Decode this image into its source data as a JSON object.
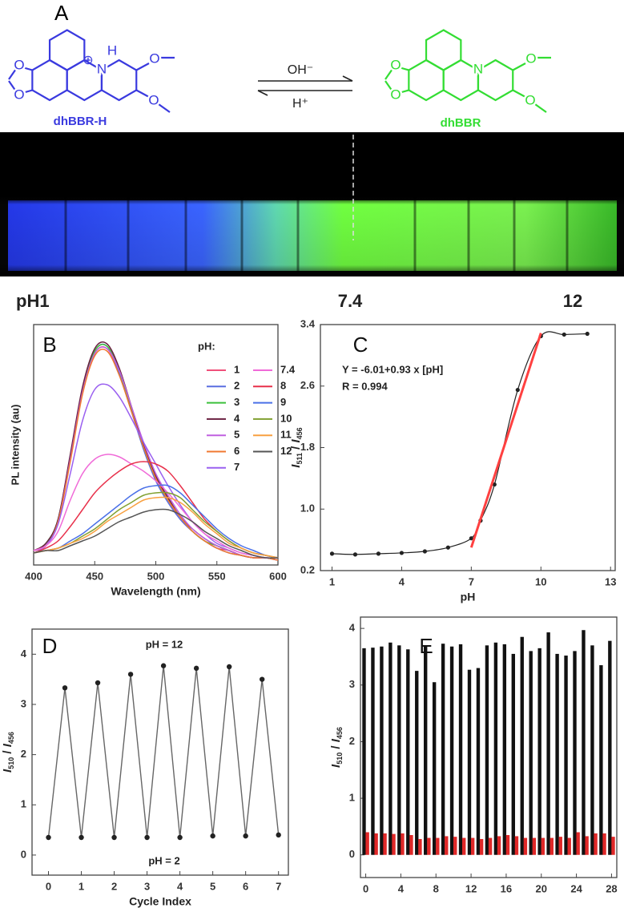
{
  "panel_a": {
    "label": "A",
    "left_name": "dhBBR-H",
    "right_name": "dhBBR",
    "forward": "OH⁻",
    "backward": "H⁺",
    "charge": "⊕",
    "left_atoms": [
      "O",
      "O",
      "N",
      "H",
      "O",
      "O"
    ],
    "right_atoms": [
      "O",
      "O",
      "N",
      "O",
      "O"
    ],
    "ph_labels": [
      "pH1",
      "7.4",
      "12"
    ]
  },
  "chart_data": [
    {
      "type": "line",
      "label": "B",
      "xlabel": "Wavelength (nm)",
      "ylabel": "PL intensity (au)",
      "xlim": [
        400,
        600
      ],
      "xticks": [
        400,
        450,
        500,
        550,
        600
      ],
      "ylim": [
        0,
        100
      ],
      "legend_title": "pH:",
      "x": [
        400,
        410,
        420,
        430,
        440,
        450,
        460,
        470,
        480,
        490,
        500,
        510,
        520,
        530,
        540,
        550,
        560,
        570,
        580,
        590,
        600
      ],
      "series": [
        {
          "name": "1",
          "color": "#f0507a",
          "values": [
            6,
            8,
            18,
            44,
            72,
            88,
            90,
            80,
            64,
            49,
            36,
            27,
            19,
            14,
            10,
            7,
            6,
            4,
            3,
            3,
            2
          ]
        },
        {
          "name": "2",
          "color": "#5a6ee0",
          "values": [
            6,
            8,
            19,
            45,
            73,
            89,
            91,
            80,
            64,
            48,
            35,
            26,
            19,
            14,
            10,
            7,
            5,
            4,
            3,
            3,
            2
          ]
        },
        {
          "name": "3",
          "color": "#3cc03c",
          "values": [
            6,
            9,
            19,
            45,
            73,
            89,
            91,
            81,
            65,
            49,
            36,
            27,
            20,
            14,
            10,
            8,
            6,
            4,
            3,
            3,
            2
          ]
        },
        {
          "name": "4",
          "color": "#6a2040",
          "values": [
            6,
            9,
            19,
            46,
            74,
            90,
            92,
            82,
            66,
            50,
            37,
            28,
            20,
            15,
            11,
            8,
            6,
            4,
            3,
            3,
            2
          ]
        },
        {
          "name": "5",
          "color": "#c060e0",
          "values": [
            6,
            8,
            18,
            44,
            72,
            88,
            90,
            81,
            66,
            51,
            38,
            29,
            21,
            15,
            11,
            8,
            6,
            4,
            3,
            3,
            2
          ]
        },
        {
          "name": "6",
          "color": "#f07830",
          "values": [
            6,
            8,
            18,
            43,
            71,
            87,
            89,
            79,
            64,
            49,
            36,
            27,
            20,
            14,
            10,
            7,
            5,
            4,
            3,
            3,
            2
          ]
        },
        {
          "name": "7",
          "color": "#9a60f0",
          "values": [
            6,
            8,
            17,
            38,
            60,
            73,
            75,
            70,
            61,
            51,
            42,
            33,
            25,
            18,
            13,
            9,
            7,
            5,
            4,
            3,
            3
          ]
        },
        {
          "name": "7.4",
          "color": "#f06ad8",
          "values": [
            6,
            8,
            14,
            27,
            38,
            44,
            46,
            45,
            42,
            39,
            35,
            30,
            24,
            18,
            13,
            10,
            7,
            5,
            4,
            3,
            3
          ]
        },
        {
          "name": "8",
          "color": "#e8304a",
          "values": [
            5,
            7,
            10,
            16,
            23,
            30,
            35,
            39,
            42,
            43,
            42,
            39,
            33,
            26,
            19,
            14,
            10,
            7,
            5,
            4,
            3
          ]
        },
        {
          "name": "9",
          "color": "#4a70e8",
          "values": [
            5,
            6,
            7,
            10,
            13,
            17,
            21,
            25,
            29,
            32,
            33,
            33,
            30,
            25,
            20,
            15,
            11,
            8,
            6,
            4,
            3
          ]
        },
        {
          "name": "10",
          "color": "#80a030",
          "values": [
            5,
            6,
            7,
            9,
            12,
            15,
            19,
            23,
            26,
            29,
            30,
            30,
            28,
            23,
            18,
            14,
            10,
            7,
            5,
            4,
            3
          ]
        },
        {
          "name": "11",
          "color": "#f8a040",
          "values": [
            5,
            6,
            7,
            9,
            11,
            14,
            18,
            21,
            24,
            27,
            28,
            28,
            26,
            22,
            17,
            13,
            9,
            7,
            5,
            4,
            3
          ]
        },
        {
          "name": "12",
          "color": "#555555",
          "values": [
            5,
            6,
            6,
            8,
            10,
            12,
            15,
            18,
            20,
            22,
            23,
            23,
            21,
            18,
            14,
            11,
            8,
            6,
            4,
            3,
            3
          ]
        }
      ]
    },
    {
      "type": "scatter",
      "label": "C",
      "xlabel": "pH",
      "ylabel": [
        "I",
        "511",
        " / ",
        "I",
        "456"
      ],
      "xlim": [
        0.5,
        13.2
      ],
      "xticks": [
        1,
        4,
        7,
        10,
        13
      ],
      "ylim": [
        0.2,
        3.4
      ],
      "yticks": [
        0.2,
        {
          "value": 1,
          "label": "1.0"
        },
        1.8,
        2.6,
        3.4
      ],
      "annotations": [
        "Y = -6.01+0.93 x [pH]",
        "R = 0.994"
      ],
      "x": [
        1,
        2,
        3,
        4,
        5,
        6,
        7,
        7.4,
        8,
        9,
        10,
        11,
        12
      ],
      "series": [
        {
          "color": "#222222",
          "values": [
            0.42,
            0.41,
            0.42,
            0.43,
            0.45,
            0.5,
            0.62,
            0.85,
            1.32,
            2.55,
            3.25,
            3.27,
            3.28
          ]
        }
      ],
      "fit": {
        "color": "#ff4040",
        "x": [
          7,
          10
        ],
        "values": [
          0.5,
          3.29
        ]
      }
    },
    {
      "type": "line",
      "label": "D",
      "xlabel": "Cycle Index",
      "ylabel": [
        "I",
        "510",
        " / ",
        "I",
        "456"
      ],
      "markers": true,
      "xlim": [
        -0.5,
        7.3
      ],
      "xticks": [
        0,
        1,
        2,
        3,
        4,
        5,
        6,
        7
      ],
      "ylim": [
        -0.4,
        4.5
      ],
      "yticks": [
        0,
        1,
        2,
        3,
        4
      ],
      "annotations": [
        "pH = 12",
        "pH = 2"
      ],
      "x": [
        0,
        0.5,
        1,
        1.5,
        2,
        2.5,
        3,
        3.5,
        4,
        4.5,
        5,
        5.5,
        6,
        6.5,
        7
      ],
      "series": [
        {
          "color": "#666666",
          "values": [
            0.35,
            3.33,
            0.35,
            3.43,
            0.35,
            3.6,
            0.35,
            3.77,
            0.35,
            3.72,
            0.38,
            3.75,
            0.38,
            3.5,
            0.4
          ]
        }
      ]
    },
    {
      "type": "bar",
      "label": "E",
      "ylabel": [
        "I",
        "510",
        " / ",
        "I",
        "456"
      ],
      "xlim": [
        -0.6,
        28.6
      ],
      "xticks": [
        0,
        4,
        8,
        12,
        16,
        20,
        24,
        28
      ],
      "ylim": [
        -0.4,
        4.2
      ],
      "yticks": [
        0,
        1,
        2,
        3,
        4
      ],
      "x": [
        0,
        1,
        2,
        3,
        4,
        5,
        6,
        7,
        8,
        9,
        10,
        11,
        12,
        13,
        14,
        15,
        16,
        17,
        18,
        19,
        20,
        21,
        22,
        23,
        24,
        25,
        26,
        27,
        28
      ],
      "series": [
        {
          "color": "#111111",
          "values": [
            3.65,
            3.66,
            3.68,
            3.75,
            3.7,
            3.63,
            3.25,
            3.68,
            3.05,
            3.73,
            3.68,
            3.72,
            3.27,
            3.3,
            3.7,
            3.75,
            3.72,
            3.55,
            3.85,
            3.6,
            3.65,
            3.93,
            3.55,
            3.52,
            3.6,
            3.97,
            3.7,
            3.35,
            3.78
          ]
        },
        {
          "color": "#e02828",
          "values": [
            0.4,
            0.38,
            0.38,
            0.37,
            0.38,
            0.35,
            0.28,
            0.3,
            0.3,
            0.33,
            0.32,
            0.3,
            0.3,
            0.28,
            0.3,
            0.33,
            0.35,
            0.33,
            0.3,
            0.3,
            0.3,
            0.3,
            0.32,
            0.3,
            0.4,
            0.33,
            0.38,
            0.38,
            0.32
          ]
        }
      ]
    }
  ]
}
